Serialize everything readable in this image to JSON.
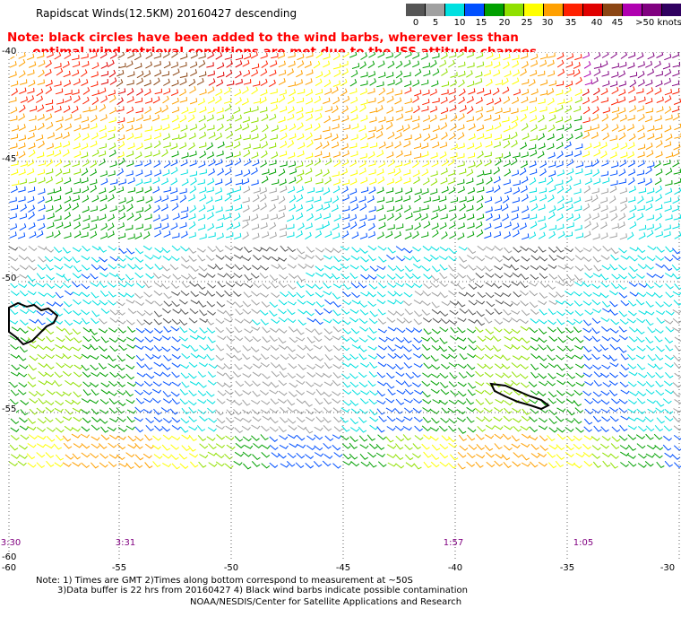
{
  "title": "Rapidscat Winds(12.5KM) 20160427 descending",
  "note_line1": "Note: black circles have been added to the wind barbs, wherever less than",
  "note_line2": "      optimal wind retrieval conditions are met due to the ISS attitude changes.",
  "legend": {
    "colors": [
      "#555555",
      "#a0a0a0",
      "#00e0e0",
      "#0050ff",
      "#00a000",
      "#90e000",
      "#ffff00",
      "#ffa000",
      "#ff2000",
      "#e00000",
      "#8b4513",
      "#b000b0",
      "#800080",
      "#300060"
    ],
    "labels": [
      "0",
      "5",
      "10",
      "15",
      "20",
      "25",
      "30",
      "35",
      "40",
      "45",
      ">50 knots"
    ]
  },
  "y_axis_labels": [
    "-40",
    "-45",
    "-50",
    "-55",
    "-60"
  ],
  "x_axis_labels": [
    "-60",
    "-55",
    "-50",
    "-45",
    "-40",
    "-35",
    "-30"
  ],
  "time_labels": [
    "3:30",
    "3:31",
    "1:57",
    "1:05"
  ],
  "footer_line1": "Note: 1) Times are GMT 2)Times along bottom correspond to measurement at ~50S",
  "footer_line2": "3)Data buffer is 22 hrs from 20160427 4) Black wind barbs indicate possible contamination",
  "footer_line3": "NOAA/NESDIS/Center for Satellite Applications and Research"
}
